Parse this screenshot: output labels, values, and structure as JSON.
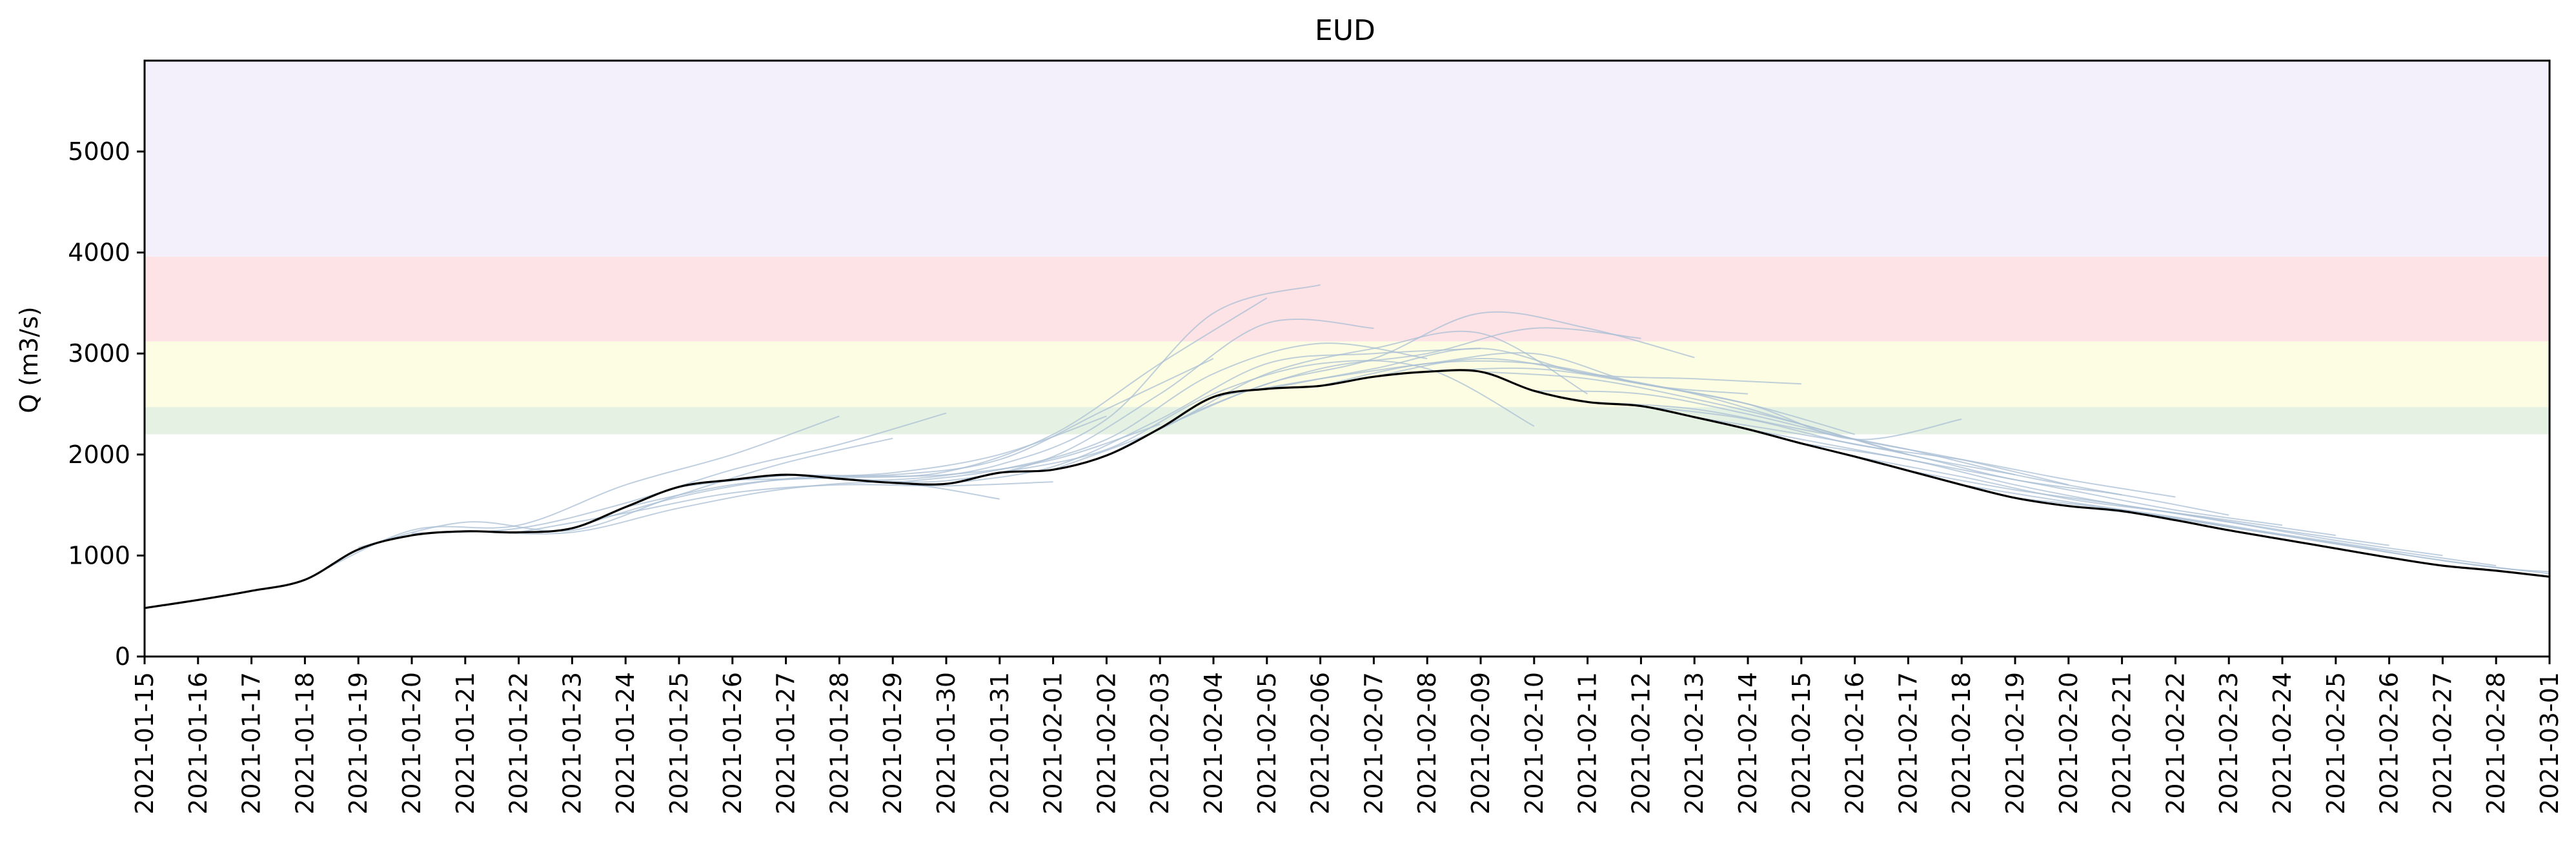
{
  "chart_data": {
    "type": "line",
    "title": "EUD",
    "xlabel": "",
    "ylabel": "Q (m3/s)",
    "xlim": [
      "2021-01-15",
      "2021-03-01"
    ],
    "ylim": [
      0,
      5900
    ],
    "yticks": [
      0,
      1000,
      2000,
      3000,
      4000,
      5000
    ],
    "xticks": [
      "2021-01-15",
      "2021-01-16",
      "2021-01-17",
      "2021-01-18",
      "2021-01-19",
      "2021-01-20",
      "2021-01-21",
      "2021-01-22",
      "2021-01-23",
      "2021-01-24",
      "2021-01-25",
      "2021-01-26",
      "2021-01-27",
      "2021-01-28",
      "2021-01-29",
      "2021-01-30",
      "2021-01-31",
      "2021-02-01",
      "2021-02-02",
      "2021-02-03",
      "2021-02-04",
      "2021-02-05",
      "2021-02-06",
      "2021-02-07",
      "2021-02-08",
      "2021-02-09",
      "2021-02-10",
      "2021-02-11",
      "2021-02-12",
      "2021-02-13",
      "2021-02-14",
      "2021-02-15",
      "2021-02-16",
      "2021-02-17",
      "2021-02-18",
      "2021-02-19",
      "2021-02-20",
      "2021-02-21",
      "2021-02-22",
      "2021-02-23",
      "2021-02-24",
      "2021-02-25",
      "2021-02-26",
      "2021-02-27",
      "2021-02-28",
      "2021-03-01"
    ],
    "grid": false,
    "bands": [
      {
        "from": 2200,
        "to": 2470,
        "color": "#e5f1e3"
      },
      {
        "from": 2470,
        "to": 3120,
        "color": "#fdfde3"
      },
      {
        "from": 3120,
        "to": 3960,
        "color": "#fde3e6"
      },
      {
        "from": 3960,
        "to": 5900,
        "color": "#f3f0fb"
      }
    ],
    "observed": {
      "color": "#000000",
      "x": [
        "2021-01-15",
        "2021-01-16",
        "2021-01-17",
        "2021-01-18",
        "2021-01-19",
        "2021-01-20",
        "2021-01-21",
        "2021-01-22",
        "2021-01-23",
        "2021-01-24",
        "2021-01-25",
        "2021-01-26",
        "2021-01-27",
        "2021-01-28",
        "2021-01-29",
        "2021-01-30",
        "2021-01-31",
        "2021-02-01",
        "2021-02-02",
        "2021-02-03",
        "2021-02-04",
        "2021-02-05",
        "2021-02-06",
        "2021-02-07",
        "2021-02-08",
        "2021-02-09",
        "2021-02-10",
        "2021-02-11",
        "2021-02-12",
        "2021-02-13",
        "2021-02-14",
        "2021-02-15",
        "2021-02-16",
        "2021-02-17",
        "2021-02-18",
        "2021-02-19",
        "2021-02-20",
        "2021-02-21",
        "2021-02-22",
        "2021-02-23",
        "2021-02-24",
        "2021-02-25",
        "2021-02-26",
        "2021-02-27",
        "2021-02-28",
        "2021-03-01"
      ],
      "y": [
        480,
        560,
        650,
        760,
        1060,
        1200,
        1240,
        1230,
        1270,
        1480,
        1680,
        1750,
        1800,
        1760,
        1720,
        1710,
        1820,
        1850,
        1990,
        2260,
        2570,
        2650,
        2680,
        2770,
        2820,
        2820,
        2630,
        2520,
        2480,
        2370,
        2250,
        2110,
        1980,
        1840,
        1700,
        1570,
        1490,
        1440,
        1350,
        1250,
        1160,
        1070,
        980,
        900,
        850,
        790
      ]
    },
    "forecasts": {
      "color": "#a9bfd4",
      "count": 34,
      "lines": [
        {
          "x": [
            "2021-01-18",
            "2021-01-20",
            "2021-01-22",
            "2021-01-24",
            "2021-01-26",
            "2021-01-28"
          ],
          "y": [
            760,
            1250,
            1300,
            1700,
            2000,
            2380
          ]
        },
        {
          "x": [
            "2021-01-19",
            "2021-01-21",
            "2021-01-23",
            "2021-01-25",
            "2021-01-27",
            "2021-01-29"
          ],
          "y": [
            1080,
            1330,
            1250,
            1600,
            1920,
            2160
          ]
        },
        {
          "x": [
            "2021-01-20",
            "2021-01-22",
            "2021-01-24",
            "2021-01-26",
            "2021-01-28",
            "2021-01-30"
          ],
          "y": [
            1220,
            1270,
            1520,
            1850,
            2100,
            2410
          ]
        },
        {
          "x": [
            "2021-01-21",
            "2021-01-23",
            "2021-01-25",
            "2021-01-27",
            "2021-01-29",
            "2021-01-31"
          ],
          "y": [
            1240,
            1230,
            1470,
            1660,
            1720,
            1560
          ]
        },
        {
          "x": [
            "2021-01-22",
            "2021-01-24",
            "2021-01-26",
            "2021-01-28",
            "2021-01-30",
            "2021-02-01"
          ],
          "y": [
            1230,
            1420,
            1620,
            1700,
            1690,
            1730
          ]
        },
        {
          "x": [
            "2021-01-23",
            "2021-01-25",
            "2021-01-27",
            "2021-01-29",
            "2021-01-31",
            "2021-02-02"
          ],
          "y": [
            1270,
            1580,
            1760,
            1820,
            2000,
            2380
          ]
        },
        {
          "x": [
            "2021-01-24",
            "2021-01-26",
            "2021-01-28",
            "2021-01-30",
            "2021-02-01",
            "2021-02-03"
          ],
          "y": [
            1480,
            1700,
            1780,
            1800,
            1950,
            2300
          ]
        },
        {
          "x": [
            "2021-01-25",
            "2021-01-27",
            "2021-01-29",
            "2021-01-31",
            "2021-02-02",
            "2021-02-04"
          ],
          "y": [
            1680,
            1790,
            1800,
            1950,
            2450,
            2950
          ]
        },
        {
          "x": [
            "2021-01-26",
            "2021-01-28",
            "2021-01-30",
            "2021-02-01",
            "2021-02-03",
            "2021-02-05"
          ],
          "y": [
            1750,
            1770,
            1830,
            2200,
            2900,
            3550
          ]
        },
        {
          "x": [
            "2021-01-27",
            "2021-01-29",
            "2021-01-31",
            "2021-02-02",
            "2021-02-04",
            "2021-02-06"
          ],
          "y": [
            1800,
            1750,
            1900,
            2350,
            3400,
            3680
          ]
        },
        {
          "x": [
            "2021-01-28",
            "2021-01-30",
            "2021-02-01",
            "2021-02-03",
            "2021-02-05",
            "2021-02-07"
          ],
          "y": [
            1760,
            1740,
            1980,
            2600,
            3300,
            3250
          ]
        },
        {
          "x": [
            "2021-01-29",
            "2021-01-31",
            "2021-02-02",
            "2021-02-04",
            "2021-02-06",
            "2021-02-08"
          ],
          "y": [
            1720,
            1850,
            2150,
            2800,
            3100,
            2950
          ]
        },
        {
          "x": [
            "2021-01-30",
            "2021-02-01",
            "2021-02-03",
            "2021-02-05",
            "2021-02-07",
            "2021-02-09"
          ],
          "y": [
            1710,
            1880,
            2350,
            2900,
            3000,
            3050
          ]
        },
        {
          "x": [
            "2021-01-31",
            "2021-02-02",
            "2021-02-04",
            "2021-02-06",
            "2021-02-08",
            "2021-02-10"
          ],
          "y": [
            1820,
            2050,
            2600,
            2900,
            2850,
            2280
          ]
        },
        {
          "x": [
            "2021-02-01",
            "2021-02-03",
            "2021-02-05",
            "2021-02-07",
            "2021-02-09",
            "2021-02-11"
          ],
          "y": [
            1850,
            2250,
            2800,
            3050,
            3200,
            2600
          ]
        },
        {
          "x": [
            "2021-02-02",
            "2021-02-04",
            "2021-02-06",
            "2021-02-08",
            "2021-02-10",
            "2021-02-12"
          ],
          "y": [
            1990,
            2500,
            2850,
            3000,
            3250,
            3150
          ]
        },
        {
          "x": [
            "2021-02-03",
            "2021-02-05",
            "2021-02-07",
            "2021-02-09",
            "2021-02-11",
            "2021-02-13"
          ],
          "y": [
            2260,
            2700,
            2950,
            3400,
            3250,
            2960
          ]
        },
        {
          "x": [
            "2021-02-04",
            "2021-02-06",
            "2021-02-08",
            "2021-02-10",
            "2021-02-12",
            "2021-02-14"
          ],
          "y": [
            2570,
            2750,
            2900,
            3000,
            2700,
            2600
          ]
        },
        {
          "x": [
            "2021-02-05",
            "2021-02-07",
            "2021-02-09",
            "2021-02-11",
            "2021-02-13",
            "2021-02-15"
          ],
          "y": [
            2650,
            2850,
            3050,
            2800,
            2750,
            2700
          ]
        },
        {
          "x": [
            "2021-02-06",
            "2021-02-08",
            "2021-02-10",
            "2021-02-12",
            "2021-02-14",
            "2021-02-16"
          ],
          "y": [
            2680,
            2900,
            2900,
            2700,
            2500,
            2200
          ]
        },
        {
          "x": [
            "2021-02-07",
            "2021-02-09",
            "2021-02-11",
            "2021-02-13",
            "2021-02-15",
            "2021-02-17"
          ],
          "y": [
            2770,
            2950,
            2800,
            2600,
            2300,
            2000
          ]
        },
        {
          "x": [
            "2021-02-08",
            "2021-02-10",
            "2021-02-12",
            "2021-02-14",
            "2021-02-16",
            "2021-02-18"
          ],
          "y": [
            2820,
            2850,
            2700,
            2500,
            2150,
            2350
          ]
        },
        {
          "x": [
            "2021-02-09",
            "2021-02-11",
            "2021-02-13",
            "2021-02-15",
            "2021-02-17",
            "2021-02-19"
          ],
          "y": [
            2820,
            2750,
            2550,
            2300,
            2000,
            1800
          ]
        },
        {
          "x": [
            "2021-02-10",
            "2021-02-12",
            "2021-02-14",
            "2021-02-16",
            "2021-02-18",
            "2021-02-20"
          ],
          "y": [
            2630,
            2600,
            2400,
            2150,
            1950,
            1700
          ]
        },
        {
          "x": [
            "2021-02-11",
            "2021-02-13",
            "2021-02-15",
            "2021-02-17",
            "2021-02-19",
            "2021-02-21"
          ],
          "y": [
            2520,
            2450,
            2250,
            2050,
            1800,
            1600
          ]
        },
        {
          "x": [
            "2021-02-12",
            "2021-02-14",
            "2021-02-16",
            "2021-02-18",
            "2021-02-20",
            "2021-02-22"
          ],
          "y": [
            2480,
            2350,
            2100,
            1950,
            1750,
            1580
          ]
        },
        {
          "x": [
            "2021-02-13",
            "2021-02-15",
            "2021-02-17",
            "2021-02-19",
            "2021-02-21",
            "2021-02-23"
          ],
          "y": [
            2370,
            2200,
            2000,
            1750,
            1600,
            1400
          ]
        },
        {
          "x": [
            "2021-02-14",
            "2021-02-16",
            "2021-02-18",
            "2021-02-20",
            "2021-02-22",
            "2021-02-24"
          ],
          "y": [
            2250,
            2050,
            1850,
            1650,
            1450,
            1300
          ]
        },
        {
          "x": [
            "2021-02-15",
            "2021-02-17",
            "2021-02-19",
            "2021-02-21",
            "2021-02-23",
            "2021-02-25"
          ],
          "y": [
            2110,
            1950,
            1700,
            1500,
            1350,
            1200
          ]
        },
        {
          "x": [
            "2021-02-16",
            "2021-02-18",
            "2021-02-20",
            "2021-02-22",
            "2021-02-24",
            "2021-02-26"
          ],
          "y": [
            1980,
            1780,
            1560,
            1420,
            1250,
            1100
          ]
        },
        {
          "x": [
            "2021-02-17",
            "2021-02-19",
            "2021-02-21",
            "2021-02-23",
            "2021-02-25",
            "2021-02-27"
          ],
          "y": [
            1840,
            1650,
            1500,
            1330,
            1150,
            1000
          ]
        },
        {
          "x": [
            "2021-02-18",
            "2021-02-20",
            "2021-02-22",
            "2021-02-24",
            "2021-02-26",
            "2021-02-28"
          ],
          "y": [
            1700,
            1530,
            1380,
            1210,
            1050,
            900
          ]
        },
        {
          "x": [
            "2021-02-19",
            "2021-02-21",
            "2021-02-23",
            "2021-02-25",
            "2021-02-27",
            "2021-03-01"
          ],
          "y": [
            1570,
            1450,
            1280,
            1120,
            950,
            820
          ]
        },
        {
          "x": [
            "2021-02-20",
            "2021-02-22",
            "2021-02-24",
            "2021-02-26",
            "2021-02-28",
            "2021-03-01"
          ],
          "y": [
            1490,
            1370,
            1200,
            1030,
            880,
            840
          ]
        }
      ]
    }
  }
}
